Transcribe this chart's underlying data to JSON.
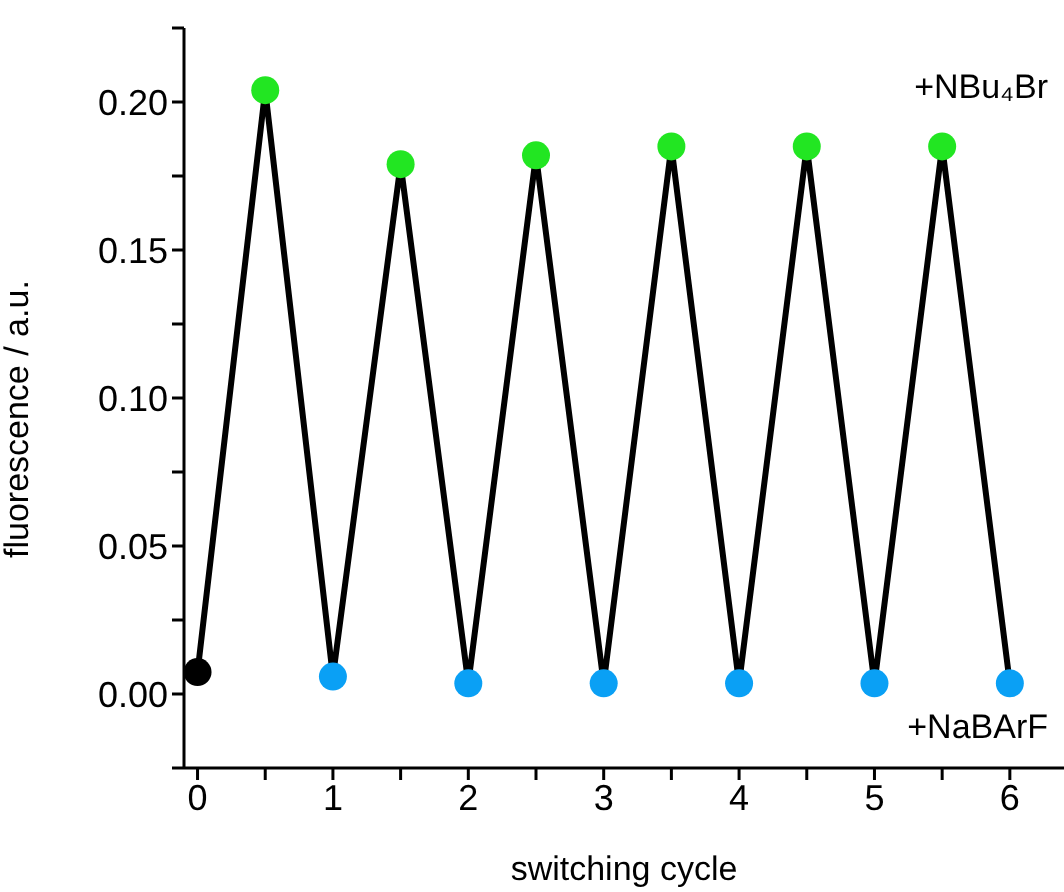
{
  "chart_data": {
    "type": "line",
    "xlabel": "switching cycle",
    "ylabel": "fluorescence / a.u.",
    "x": [
      0,
      0.5,
      1,
      1.5,
      2,
      2.5,
      3,
      3.5,
      4,
      4.5,
      5,
      5.5,
      6
    ],
    "series": [
      {
        "color": "#000000",
        "colors": [
          "#000000",
          "#22e622",
          "#0aa0f5",
          "#22e622",
          "#0aa0f5",
          "#22e622",
          "#0aa0f5",
          "#22e622",
          "#0aa0f5",
          "#22e622",
          "#0aa0f5",
          "#22e622",
          "#0aa0f5"
        ],
        "values": [
          0.0074,
          0.204,
          0.0059,
          0.179,
          0.0036,
          0.182,
          0.0036,
          0.185,
          0.0036,
          0.185,
          0.0036,
          0.185,
          0.0036
        ]
      }
    ],
    "xlim": [
      -0.1,
      6.4
    ],
    "xticks": [
      0,
      {
        "value": 0.5,
        "label": null
      },
      1,
      {
        "value": 1.5,
        "label": null
      },
      2,
      {
        "value": 2.5,
        "label": null
      },
      3,
      {
        "value": 3.5,
        "label": null
      },
      4,
      {
        "value": 4.5,
        "label": null
      },
      5,
      {
        "value": 5.5,
        "label": null
      },
      6
    ],
    "ylim": [
      -0.025,
      0.225
    ],
    "yticks": [
      {
        "value": -0.025,
        "label": null
      },
      {
        "value": 0,
        "label": "0.00"
      },
      {
        "value": 0.025,
        "label": null
      },
      {
        "value": 0.05,
        "label": "0.05"
      },
      {
        "value": 0.075,
        "label": null
      },
      {
        "value": 0.1,
        "label": "0.10"
      },
      {
        "value": 0.125,
        "label": null
      },
      {
        "value": 0.15,
        "label": "0.15"
      },
      {
        "value": 0.175,
        "label": null
      },
      {
        "value": 0.2,
        "label": "0.20"
      },
      {
        "value": 0.225,
        "label": null
      }
    ],
    "annotations": [
      "+NBu₄Br",
      "+NaBArF"
    ],
    "marker": "circle",
    "line_style": "solid",
    "grid": false,
    "legend": false
  }
}
